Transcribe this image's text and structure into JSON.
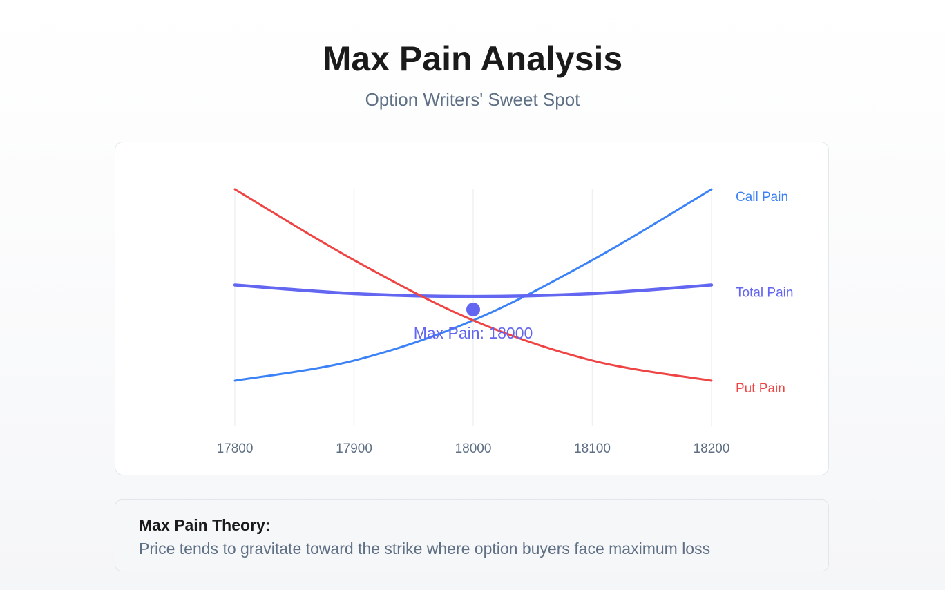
{
  "header": {
    "title": "Max Pain Analysis",
    "subtitle": "Option Writers' Sweet Spot"
  },
  "chart_data": {
    "type": "line",
    "x": [
      17800,
      17900,
      18000,
      18100,
      18200
    ],
    "xtick_labels": [
      "17800",
      "17900",
      "18000",
      "18100",
      "18200"
    ],
    "series": [
      {
        "name": "Call Pain",
        "color": "#3b82f6",
        "values": [
          0,
          0.105,
          0.315,
          0.63,
          1.0
        ]
      },
      {
        "name": "Total Pain",
        "color": "#6366f1",
        "values": [
          0.5,
          0.455,
          0.44,
          0.455,
          0.5
        ]
      },
      {
        "name": "Put Pain",
        "color": "#ef4444",
        "values": [
          1.0,
          0.63,
          0.315,
          0.105,
          0
        ]
      }
    ],
    "max_pain": {
      "strike": 18000,
      "label": "Max Pain: 18000",
      "color": "#6366f1"
    },
    "ylim": [
      0,
      1
    ],
    "grid": "vertical",
    "legend": "right of lines"
  },
  "info": {
    "heading": "Max Pain Theory:",
    "text": "Price tends to gravitate toward the strike where option buyers face maximum loss"
  }
}
